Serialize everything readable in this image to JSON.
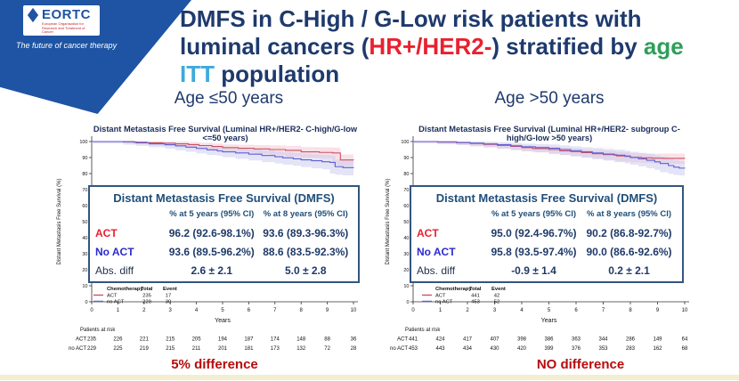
{
  "logo": {
    "name": "EORTC",
    "subtext": "European Organisation for Research and Treatment of Cancer",
    "tagline": "The future of cancer therapy"
  },
  "colors": {
    "banner_blue": "#1e54a3",
    "title_navy": "#1e3a6d",
    "hr_her2_red": "#e8212e",
    "age_green": "#2f9e5a",
    "itt_blue": "#3fa9dc",
    "table_navy": "#1f4e79",
    "annotation_red": "#b80b0b",
    "act_curve": "#cc5263",
    "noact_curve": "#5f5fd3",
    "bottom_bar": "#f3eecf"
  },
  "title": {
    "line1": "DMFS in C-High / G-Low risk patients with",
    "line2a": "luminal cancers (",
    "line2b": "HR+/HER2-",
    "line2c": ") stratified by ",
    "line2d": "age",
    "line3a": "ITT",
    "line3b": " population"
  },
  "panels": [
    {
      "subtitle": "Age ≤50 years",
      "chart_title": "Distant Metastasis Free Survival (Luminal HR+/HER2- C-high/G-low <=50 years)",
      "table": {
        "title": "Distant Metastasis Free Survival (DMFS)",
        "col1": "% at 5 years (95% CI)",
        "col2": "% at 8 years (95% CI)",
        "rows": [
          {
            "label": "ACT",
            "v1": "96.2 (92.6-98.1%)",
            "v2": "93.6 (89.3-96.3%)"
          },
          {
            "label": "No ACT",
            "v1": "93.6 (89.5-96.2%)",
            "v2": "88.6 (83.5-92.3%)"
          },
          {
            "label": "Abs. diff",
            "v1": "2.6 ± 2.1",
            "v2": "5.0 ± 2.8"
          }
        ]
      },
      "legend": {
        "col_chemo": "Chemotherapy",
        "col_total": "Total",
        "col_event": "Event",
        "rows": [
          {
            "label": "ACT",
            "total": "235",
            "event": "17"
          },
          {
            "label": "no ACT",
            "total": "229",
            "event": "30"
          }
        ]
      },
      "patients_at_risk": {
        "title": "Patients at risk",
        "rows": [
          {
            "label": "ACT",
            "values": [
              235,
              226,
              221,
              215,
              205,
              194,
              187,
              174,
              148,
              88,
              36
            ]
          },
          {
            "label": "no ACT",
            "values": [
              229,
              225,
              219,
              215,
              211,
              201,
              181,
              173,
              132,
              72,
              28
            ]
          }
        ]
      },
      "annotation": "5% difference"
    },
    {
      "subtitle": "Age >50 years",
      "chart_title": "Distant Metastasis Free Survival (Luminal HR+/HER2- subgroup C-high/G-low >50 years)",
      "table": {
        "title": "Distant Metastasis Free Survival (DMFS)",
        "col1": "% at 5 years (95% CI)",
        "col2": "% at 8 years (95% CI)",
        "rows": [
          {
            "label": "ACT",
            "v1": "95.0 (92.4-96.7%)",
            "v2": "90.2 (86.8-92.7%)"
          },
          {
            "label": "No ACT",
            "v1": "95.8 (93.5-97.4%)",
            "v2": "90.0 (86.6-92.6%)"
          },
          {
            "label": "Abs. diff",
            "v1": "-0.9 ± 1.4",
            "v2": "0.2 ± 2.1"
          }
        ]
      },
      "legend": {
        "col_chemo": "Chemotherapy",
        "col_total": "Total",
        "col_event": "Event",
        "rows": [
          {
            "label": "ACT",
            "total": "441",
            "event": "42"
          },
          {
            "label": "no ACT",
            "total": "453",
            "event": "52"
          }
        ]
      },
      "patients_at_risk": {
        "title": "Patients at risk",
        "rows": [
          {
            "label": "ACT",
            "values": [
              441,
              424,
              417,
              407,
              398,
              386,
              363,
              344,
              286,
              149,
              64
            ]
          },
          {
            "label": "no ACT",
            "values": [
              453,
              443,
              434,
              430,
              420,
              399,
              376,
              353,
              283,
              162,
              68
            ]
          }
        ]
      },
      "annotation": "NO difference"
    }
  ],
  "chart_data": [
    {
      "type": "line",
      "subtype": "kaplan-meier-step",
      "title": "Distant Metastasis Free Survival (Luminal HR+/HER2- C-high/G-low <=50 years)",
      "xlabel": "Years",
      "ylabel": "Distant Metastasis Free Survival (%)",
      "xlim": [
        0,
        10
      ],
      "ylim": [
        0,
        100
      ],
      "xticks": [
        0,
        1,
        2,
        3,
        4,
        5,
        6,
        7,
        8,
        9,
        10
      ],
      "yticks": [
        0,
        10,
        20,
        30,
        40,
        50,
        60,
        70,
        80,
        90,
        100
      ],
      "legend_position": "lower-left",
      "series": [
        {
          "name": "ACT",
          "color": "#cc5263",
          "band": "#f2c3d0",
          "total": 235,
          "events": 17,
          "pct_5yr": 96.2,
          "pct_8yr": 93.6,
          "ci_end_halfwidth": 3.6,
          "points": [
            [
              0,
              100
            ],
            [
              1.3,
              100
            ],
            [
              1.6,
              99.6
            ],
            [
              2.1,
              99.2
            ],
            [
              2.7,
              98.9
            ],
            [
              3.2,
              98.6
            ],
            [
              3.7,
              98.1
            ],
            [
              4.1,
              97.5
            ],
            [
              4.6,
              96.9
            ],
            [
              5,
              96.2
            ],
            [
              5.6,
              95.8
            ],
            [
              6.2,
              95.4
            ],
            [
              6.8,
              95.0
            ],
            [
              7.4,
              94.5
            ],
            [
              8,
              93.6
            ],
            [
              8.7,
              93.2
            ],
            [
              9.2,
              92.9
            ],
            [
              9.5,
              88.5
            ],
            [
              10,
              88.3
            ]
          ]
        },
        {
          "name": "no ACT",
          "color": "#5f5fd3",
          "band": "#c9c9f0",
          "total": 229,
          "events": 30,
          "pct_5yr": 93.6,
          "pct_8yr": 88.6,
          "ci_end_halfwidth": 4.6,
          "points": [
            [
              0,
              100
            ],
            [
              1.2,
              99.8
            ],
            [
              1.7,
              99.2
            ],
            [
              2.2,
              98.6
            ],
            [
              2.8,
              98.0
            ],
            [
              3.2,
              97.3
            ],
            [
              3.6,
              96.5
            ],
            [
              4,
              95.7
            ],
            [
              4.4,
              94.8
            ],
            [
              4.8,
              94.1
            ],
            [
              5,
              93.6
            ],
            [
              5.5,
              92.9
            ],
            [
              6,
              92.1
            ],
            [
              6.5,
              91.3
            ],
            [
              7,
              90.5
            ],
            [
              7.3,
              89.8
            ],
            [
              7.7,
              89.2
            ],
            [
              8,
              88.6
            ],
            [
              8.4,
              88.0
            ],
            [
              8.8,
              87.4
            ],
            [
              9.1,
              87.0
            ],
            [
              9.3,
              84.3
            ],
            [
              9.6,
              83.7
            ],
            [
              10,
              83.5
            ]
          ]
        }
      ]
    },
    {
      "type": "line",
      "subtype": "kaplan-meier-step",
      "title": "Distant Metastasis Free Survival (Luminal HR+/HER2- subgroup C-high/G-low >50 years)",
      "xlabel": "Years",
      "ylabel": "Distant Metastasis Free Survival (%)",
      "xlim": [
        0,
        10
      ],
      "ylim": [
        0,
        100
      ],
      "xticks": [
        0,
        1,
        2,
        3,
        4,
        5,
        6,
        7,
        8,
        9,
        10
      ],
      "yticks": [
        0,
        10,
        20,
        30,
        40,
        50,
        60,
        70,
        80,
        90,
        100
      ],
      "legend_position": "lower-left",
      "series": [
        {
          "name": "ACT",
          "color": "#cc5263",
          "band": "#f2c3d0",
          "total": 441,
          "events": 42,
          "pct_5yr": 95.0,
          "pct_8yr": 90.2,
          "ci_end_halfwidth": 3.2,
          "points": [
            [
              0,
              100
            ],
            [
              0.9,
              99.7
            ],
            [
              1.6,
              99.3
            ],
            [
              2.1,
              98.8
            ],
            [
              2.6,
              98.2
            ],
            [
              3.1,
              97.6
            ],
            [
              3.6,
              97.0
            ],
            [
              4,
              96.2
            ],
            [
              4.4,
              95.6
            ],
            [
              5,
              95.0
            ],
            [
              5.4,
              94.2
            ],
            [
              5.8,
              93.7
            ],
            [
              6.2,
              93.1
            ],
            [
              6.6,
              92.4
            ],
            [
              7,
              91.8
            ],
            [
              7.5,
              91.0
            ],
            [
              8,
              90.2
            ],
            [
              8.4,
              89.8
            ],
            [
              8.8,
              89.6
            ],
            [
              9.2,
              89.5
            ],
            [
              10,
              89.4
            ]
          ]
        },
        {
          "name": "no ACT",
          "color": "#5f5fd3",
          "band": "#c9c9f0",
          "total": 453,
          "events": 52,
          "pct_5yr": 95.8,
          "pct_8yr": 90.0,
          "ci_end_halfwidth": 4.4,
          "points": [
            [
              0,
              100
            ],
            [
              0.9,
              99.8
            ],
            [
              1.6,
              99.4
            ],
            [
              2.1,
              99.0
            ],
            [
              2.6,
              98.5
            ],
            [
              3.1,
              98.0
            ],
            [
              3.6,
              97.3
            ],
            [
              4,
              96.7
            ],
            [
              4.5,
              96.2
            ],
            [
              5,
              95.8
            ],
            [
              5.4,
              95.0
            ],
            [
              5.8,
              94.3
            ],
            [
              6.2,
              93.6
            ],
            [
              6.6,
              92.9
            ],
            [
              7,
              92.2
            ],
            [
              7.4,
              91.5
            ],
            [
              7.8,
              90.7
            ],
            [
              8,
              90.0
            ],
            [
              8.3,
              89.2
            ],
            [
              8.6,
              88.3
            ],
            [
              8.9,
              87.3
            ],
            [
              9.1,
              86.3
            ],
            [
              9.4,
              85.0
            ],
            [
              9.6,
              84.0
            ],
            [
              9.8,
              83.4
            ],
            [
              10,
              83.2
            ]
          ]
        }
      ]
    }
  ]
}
